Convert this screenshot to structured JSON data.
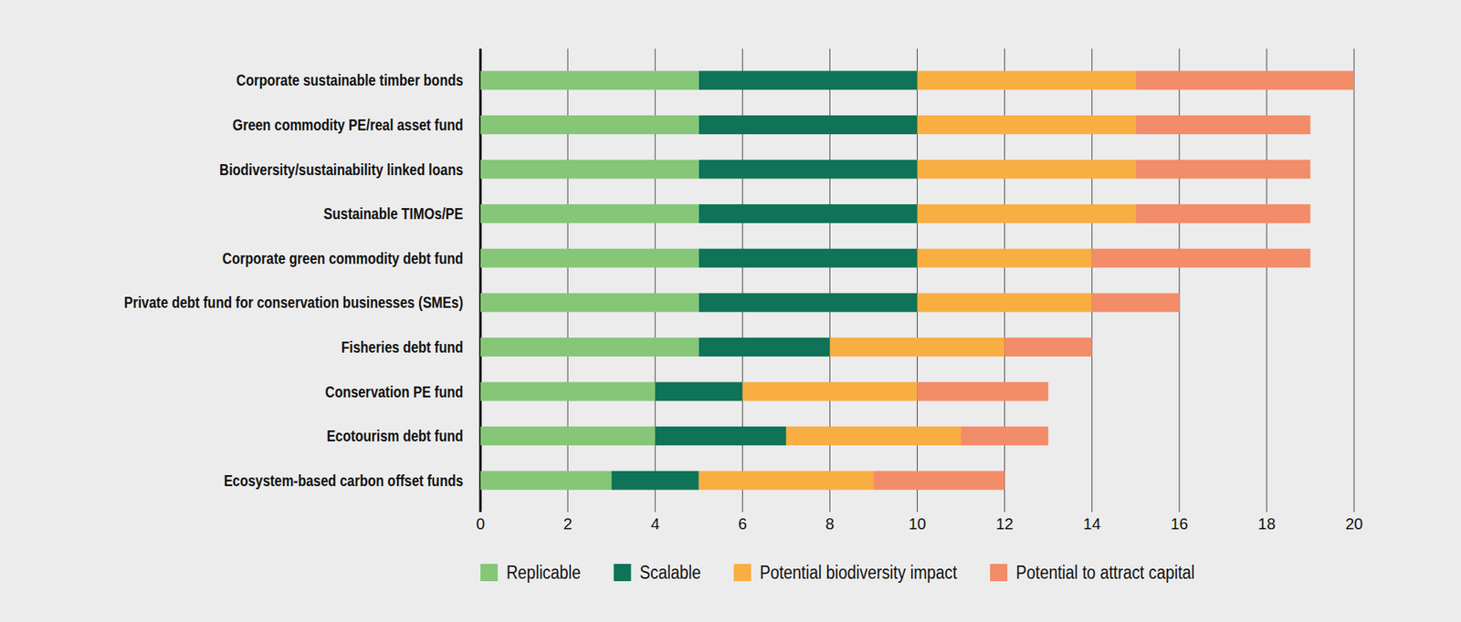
{
  "chart_data": {
    "type": "bar",
    "orientation": "horizontal",
    "stacked": true,
    "grid": true,
    "legend": "bottom",
    "categories": [
      "Corporate sustainable timber bonds",
      "Green commodity PE/real asset fund",
      "Biodiversity/sustainability linked loans",
      "Sustainable TIMOs/PE",
      "Corporate green commodity debt fund",
      "Private debt fund for conservation businesses (SMEs)",
      "Fisheries debt fund",
      "Conservation PE fund",
      "Ecotourism debt fund",
      "Ecosystem-based carbon offset funds"
    ],
    "series": [
      {
        "name": "Replicable",
        "color": "#86c677",
        "values": [
          5,
          5,
          5,
          5,
          5,
          5,
          5,
          4,
          4,
          3
        ]
      },
      {
        "name": "Scalable",
        "color": "#0e7357",
        "values": [
          5,
          5,
          5,
          5,
          5,
          5,
          3,
          2,
          3,
          2
        ]
      },
      {
        "name": "Potential biodiversity impact",
        "color": "#f9ae42",
        "values": [
          5,
          5,
          5,
          5,
          4,
          4,
          4,
          4,
          4,
          4
        ]
      },
      {
        "name": "Potential to attract capital",
        "color": "#f38c68",
        "values": [
          5,
          4,
          4,
          4,
          5,
          2,
          2,
          3,
          2,
          3
        ]
      }
    ],
    "xlim": [
      0,
      20
    ],
    "xticks": [
      0,
      2,
      4,
      6,
      8,
      10,
      12,
      14,
      16,
      18,
      20
    ]
  }
}
